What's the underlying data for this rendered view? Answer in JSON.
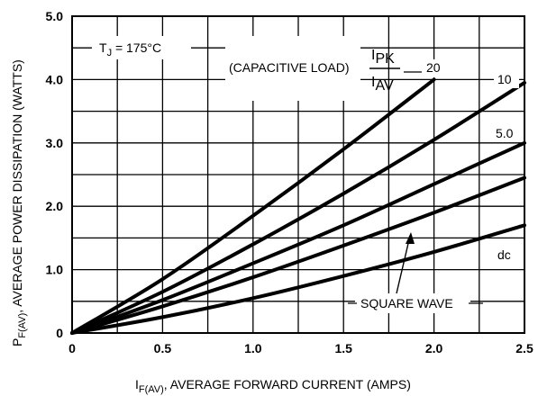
{
  "chart_data": {
    "type": "line",
    "title": "",
    "xlabel": {
      "main": "I",
      "sub": "F(AV)",
      "rest": ", AVERAGE FORWARD CURRENT (AMPS)"
    },
    "ylabel": {
      "main": "P",
      "sub": "F(AV)",
      "rest": ", AVERAGE POWER DISSIPATION (WATTS)"
    },
    "xlim": [
      0,
      2.5
    ],
    "ylim": [
      0,
      5.0
    ],
    "xticks": [
      0,
      0.5,
      1.0,
      1.5,
      2.0,
      2.5
    ],
    "xtick_labels": [
      "0",
      "0.5",
      "1.0",
      "1.5",
      "2.0",
      "2.5"
    ],
    "yticks": [
      0,
      1.0,
      2.0,
      3.0,
      4.0,
      5.0
    ],
    "ytick_labels": [
      "0",
      "1.0",
      "2.0",
      "3.0",
      "4.0",
      "5.0"
    ],
    "grid": true,
    "series": [
      {
        "name": "20",
        "x": [
          0,
          0.5,
          1.0,
          1.5,
          2.0
        ],
        "y": [
          0,
          0.85,
          1.85,
          2.9,
          4.0
        ]
      },
      {
        "name": "10",
        "x": [
          0,
          0.5,
          1.0,
          1.5,
          2.0,
          2.5
        ],
        "y": [
          0,
          0.65,
          1.4,
          2.2,
          3.05,
          3.95
        ]
      },
      {
        "name": "5.0",
        "x": [
          0,
          0.5,
          1.0,
          1.5,
          2.0,
          2.5
        ],
        "y": [
          0,
          0.52,
          1.1,
          1.7,
          2.35,
          3.0
        ]
      },
      {
        "name": "SQUARE WAVE",
        "x": [
          0,
          0.5,
          1.0,
          1.5,
          2.0,
          2.5
        ],
        "y": [
          0,
          0.42,
          0.88,
          1.38,
          1.9,
          2.45
        ]
      },
      {
        "name": "dc",
        "x": [
          0,
          0.5,
          1.0,
          1.5,
          2.0,
          2.5
        ],
        "y": [
          0,
          0.25,
          0.55,
          0.9,
          1.28,
          1.7
        ]
      }
    ],
    "annotations": {
      "tj": {
        "pre": "T",
        "sub": "J",
        "post": " = 175°C"
      },
      "capacitive": "(CAPACITIVE LOAD)",
      "ratio_top": "I",
      "ratio_top_sub": "PK",
      "ratio_bottom": "I",
      "ratio_bottom_sub": "AV",
      "square_wave": "SQUARE WAVE"
    }
  }
}
